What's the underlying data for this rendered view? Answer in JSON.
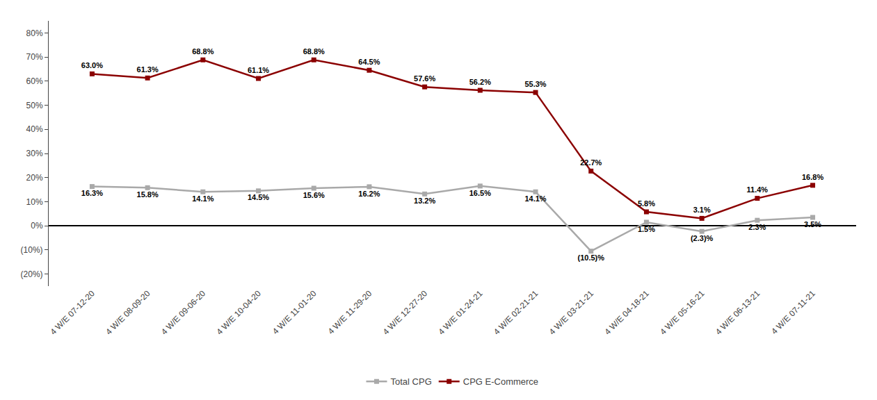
{
  "chart_data": {
    "type": "line",
    "categories": [
      "4 W/E 07-12-20",
      "4 W/E 08-09-20",
      "4 W/E 09-06-20",
      "4 W/E 10-04-20",
      "4 W/E 11-01-20",
      "4 W/E 11-29-20",
      "4 W/E 12-27-20",
      "4 W/E 01-24-21",
      "4 W/E 02-21-21",
      "4 W/E 03-21-21",
      "4 W/E 04-18-21",
      "4 W/E 05-16-21",
      "4 W/E 06-13-21",
      "4 W/E 07-11-21"
    ],
    "series": [
      {
        "name": "CPG E-Commerce",
        "color": "#8B0000",
        "marker": "square",
        "values": [
          63.0,
          61.3,
          68.8,
          61.1,
          68.8,
          64.5,
          57.6,
          56.2,
          55.3,
          22.7,
          5.8,
          3.1,
          11.4,
          16.8
        ],
        "value_labels": [
          "63.0%",
          "61.3%",
          "68.8%",
          "61.1%",
          "68.8%",
          "64.5%",
          "57.6%",
          "56.2%",
          "55.3%",
          "22.7%",
          "5.8%",
          "3.1%",
          "11.4%",
          "16.8%"
        ]
      },
      {
        "name": "Total CPG",
        "color": "#A9A9A9",
        "marker": "square",
        "values": [
          16.3,
          15.8,
          14.1,
          14.5,
          15.6,
          16.2,
          13.2,
          16.5,
          14.1,
          -10.5,
          1.5,
          -2.3,
          2.3,
          3.5
        ],
        "value_labels": [
          "16.3%",
          "15.8%",
          "14.1%",
          "14.5%",
          "15.6%",
          "16.2%",
          "13.2%",
          "16.5%",
          "14.1%",
          "(10.5)%",
          "1.5%",
          "(2.3)%",
          "2.3%",
          "3.5%"
        ]
      }
    ],
    "ylim": [
      -25,
      85
    ],
    "yticks": [
      {
        "value": -20,
        "label": "(20%)"
      },
      {
        "value": -10,
        "label": "(10%)"
      },
      {
        "value": 0,
        "label": "0%"
      },
      {
        "value": 10,
        "label": "10%"
      },
      {
        "value": 20,
        "label": "20%"
      },
      {
        "value": 30,
        "label": "30%"
      },
      {
        "value": 40,
        "label": "40%"
      },
      {
        "value": 50,
        "label": "50%"
      },
      {
        "value": 60,
        "label": "60%"
      },
      {
        "value": 70,
        "label": "70%"
      },
      {
        "value": 80,
        "label": "80%"
      }
    ],
    "data_labels": true,
    "legend": "bottom",
    "grid": false
  }
}
